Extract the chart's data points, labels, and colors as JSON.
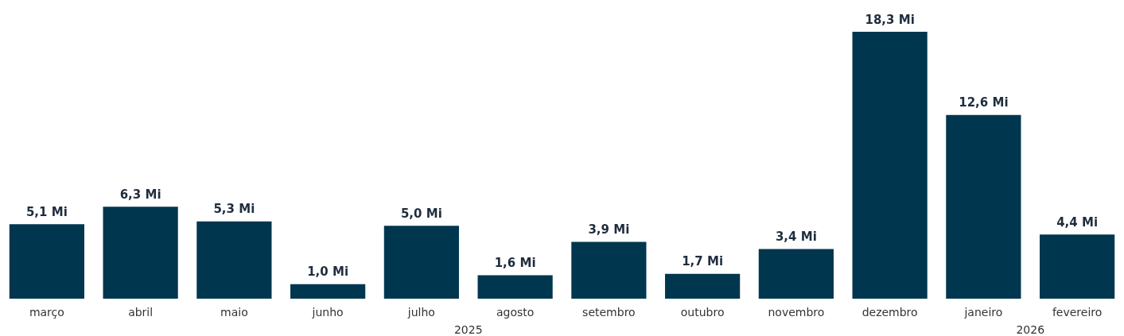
{
  "chart_data": {
    "type": "bar",
    "categories": [
      "março",
      "abril",
      "maio",
      "junho",
      "julho",
      "agosto",
      "setembro",
      "outubro",
      "novembro",
      "dezembro",
      "janeiro",
      "fevereiro"
    ],
    "values": [
      5.1,
      6.3,
      5.3,
      1.0,
      5.0,
      1.6,
      3.9,
      1.7,
      3.4,
      18.3,
      12.6,
      4.4
    ],
    "value_labels": [
      "5,1 Mi",
      "6,3 Mi",
      "5,3 Mi",
      "1,0 Mi",
      "5,0 Mi",
      "1,6 Mi",
      "3,9 Mi",
      "1,7 Mi",
      "3,4 Mi",
      "18,3 Mi",
      "12,6 Mi",
      "4,4 Mi"
    ],
    "color": "#01364f",
    "annotations": [
      "2025",
      "2026"
    ],
    "grid": false
  }
}
